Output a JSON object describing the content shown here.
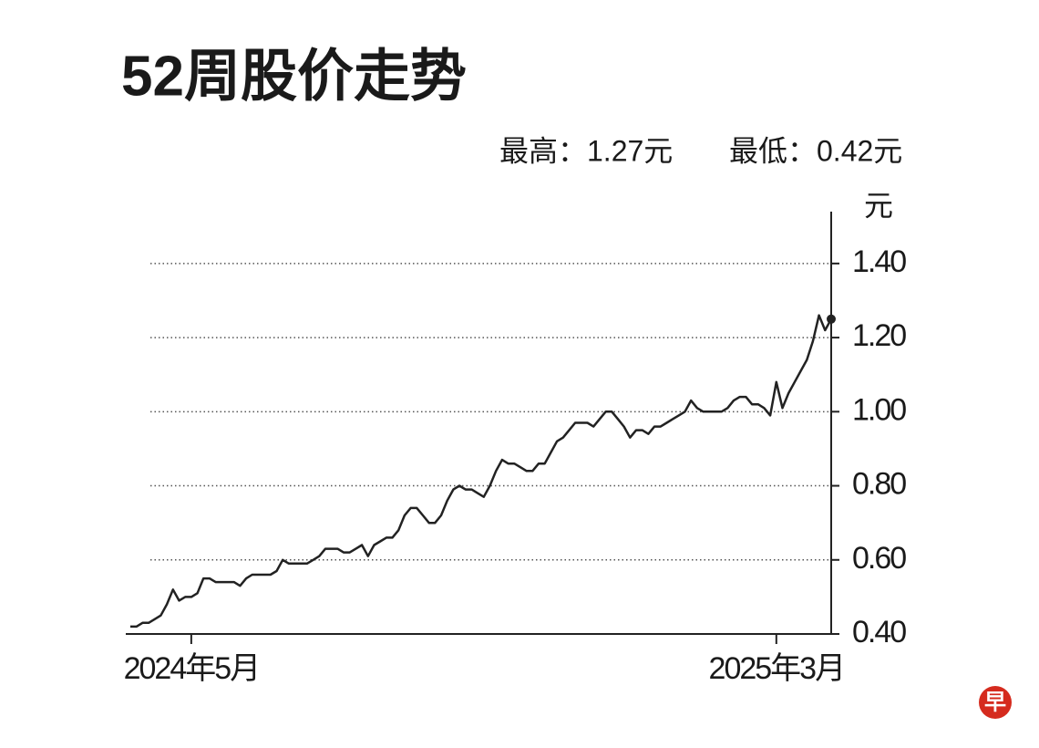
{
  "logo": "早",
  "chart_data": {
    "type": "line",
    "title": "52周股价走势",
    "annotations": [
      "最高：1.27元",
      "最低：0.42元"
    ],
    "y_label": "元",
    "color": "#222222",
    "categories": [
      null,
      null,
      null,
      null,
      null,
      null,
      null,
      null,
      null,
      null,
      "2024年5月",
      null,
      null,
      null,
      null,
      null,
      null,
      null,
      null,
      null,
      null,
      null,
      null,
      null,
      null,
      null,
      null,
      null,
      null,
      null,
      null,
      null,
      null,
      null,
      null,
      null,
      null,
      null,
      null,
      null,
      null,
      null,
      null,
      null,
      null,
      null,
      null,
      null,
      null,
      null,
      null,
      null,
      null,
      null,
      null,
      null,
      null,
      null,
      null,
      null,
      null,
      null,
      null,
      null,
      null,
      null,
      null,
      null,
      null,
      null,
      null,
      null,
      null,
      null,
      null,
      null,
      null,
      null,
      null,
      null,
      null,
      null,
      null,
      null,
      null,
      null,
      null,
      null,
      null,
      null,
      null,
      null,
      null,
      null,
      null,
      null,
      null,
      null,
      null,
      null,
      null,
      null,
      null,
      null,
      null,
      null,
      "2025年3月",
      null,
      null,
      null,
      null,
      null,
      null,
      null,
      null,
      null
    ],
    "values": [
      0.42,
      0.42,
      0.43,
      0.43,
      0.44,
      0.45,
      0.48,
      0.52,
      0.49,
      0.5,
      0.5,
      0.51,
      0.55,
      0.55,
      0.54,
      0.54,
      0.54,
      0.54,
      0.53,
      0.55,
      0.56,
      0.56,
      0.56,
      0.56,
      0.57,
      0.6,
      0.59,
      0.59,
      0.59,
      0.59,
      0.6,
      0.61,
      0.63,
      0.63,
      0.63,
      0.62,
      0.62,
      0.63,
      0.64,
      0.61,
      0.64,
      0.65,
      0.66,
      0.66,
      0.68,
      0.72,
      0.74,
      0.74,
      0.72,
      0.7,
      0.7,
      0.72,
      0.76,
      0.79,
      0.8,
      0.79,
      0.79,
      0.78,
      0.77,
      0.8,
      0.84,
      0.87,
      0.86,
      0.86,
      0.85,
      0.84,
      0.84,
      0.86,
      0.86,
      0.89,
      0.92,
      0.93,
      0.95,
      0.97,
      0.97,
      0.97,
      0.96,
      0.98,
      1.0,
      1.0,
      0.98,
      0.96,
      0.93,
      0.95,
      0.95,
      0.94,
      0.96,
      0.96,
      0.97,
      0.98,
      0.99,
      1.0,
      1.03,
      1.01,
      1.0,
      1.0,
      1.0,
      1.0,
      1.01,
      1.03,
      1.04,
      1.04,
      1.02,
      1.02,
      1.01,
      0.99,
      1.08,
      1.01,
      1.05,
      1.08,
      1.11,
      1.14,
      1.19,
      1.26,
      1.22,
      1.25
    ],
    "ylim": [
      0.4,
      1.54
    ],
    "yticks": [
      {
        "value": 0.4,
        "label": "0.40"
      },
      {
        "value": 0.6,
        "label": "0.60"
      },
      {
        "value": 0.8,
        "label": "0.80"
      },
      {
        "value": 1.0,
        "label": "1.00"
      },
      {
        "value": 1.2,
        "label": "1.20"
      },
      {
        "value": 1.4,
        "label": "1.40"
      }
    ],
    "grid": true
  }
}
